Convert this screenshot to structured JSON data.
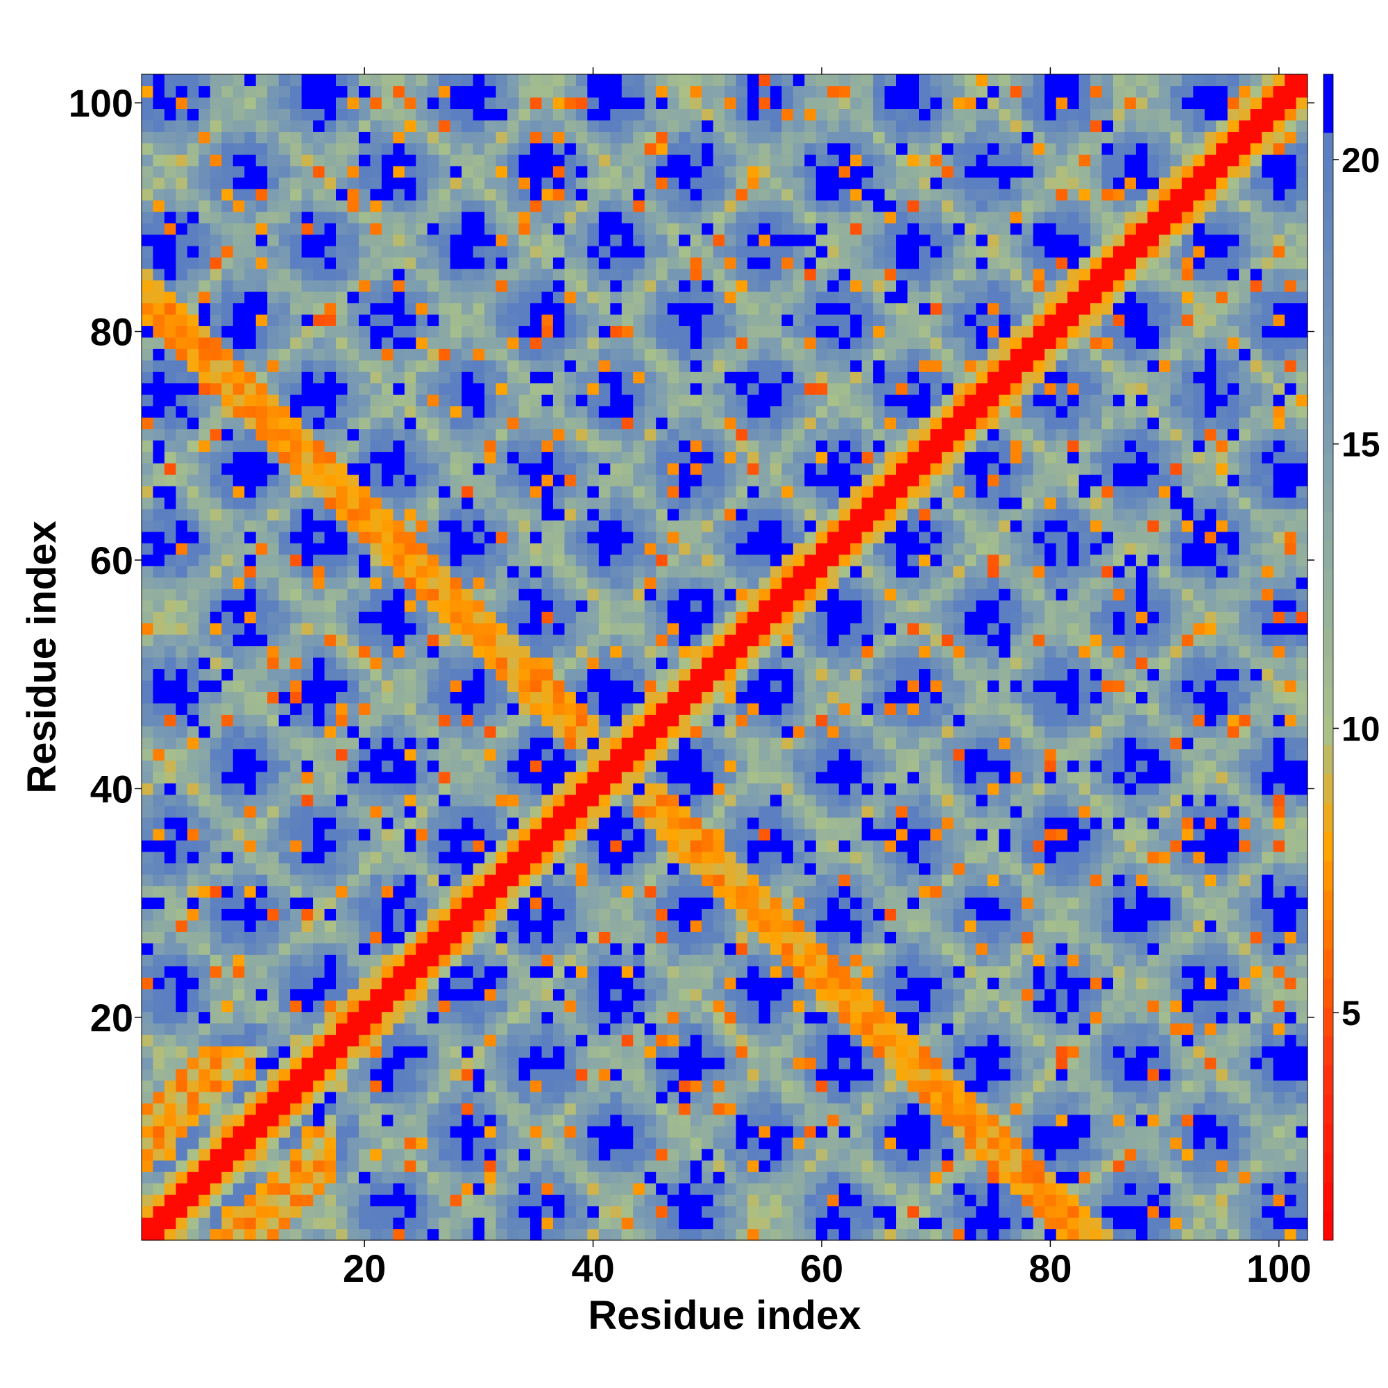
{
  "chart_data": {
    "type": "heatmap",
    "title": "",
    "xlabel": "Residue index",
    "ylabel": "Residue index",
    "xlim": [
      1,
      102
    ],
    "ylim": [
      1,
      102
    ],
    "x_ticks": [
      20,
      40,
      60,
      80,
      100
    ],
    "y_ticks": [
      20,
      40,
      60,
      80,
      100
    ],
    "x_tick_labels": [
      "20",
      "40",
      "60",
      "80",
      "100"
    ],
    "y_tick_labels": [
      "20",
      "40",
      "60",
      "80",
      "100"
    ],
    "colorbar": {
      "range": [
        1,
        21.5
      ],
      "ticks": [
        5,
        10,
        15,
        20
      ],
      "tick_labels": [
        "5",
        "10",
        "15",
        "20"
      ],
      "over_color": "#0000ff",
      "stops": [
        {
          "value": 1,
          "color": "#ff0000"
        },
        {
          "value": 4,
          "color": "#ff3311"
        },
        {
          "value": 6,
          "color": "#ff6a00"
        },
        {
          "value": 8,
          "color": "#ffa500"
        },
        {
          "value": 10,
          "color": "#a8c08a"
        },
        {
          "value": 15,
          "color": "#7f9fb0"
        },
        {
          "value": 20,
          "color": "#5b7fc0"
        }
      ]
    },
    "matrix_description": {
      "n_residues": 102,
      "diagonal_value": 2,
      "background_value": 25,
      "helix_period": 13,
      "note_values": "distance-like map symmetric about the diagonal; near-contact (orange) bands run along the anti-diagonal from residue 42; low values (green/grey) form rings around blue voids"
    }
  }
}
